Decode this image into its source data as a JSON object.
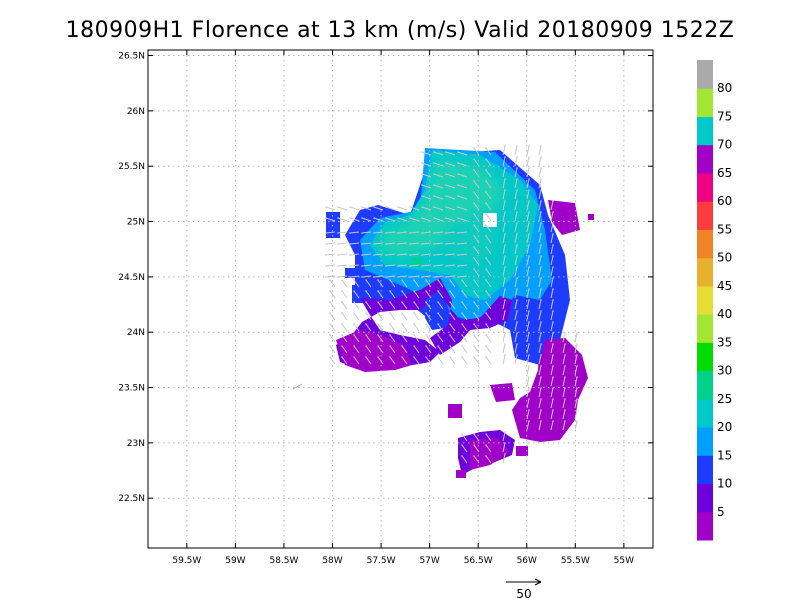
{
  "title": "180909H1 Florence at 13 km (m/s) Valid 20180909  1522Z",
  "map": {
    "lat_labels": [
      "26.5N",
      "26N",
      "25.5N",
      "25N",
      "24.5N",
      "24N",
      "23.5N",
      "23N",
      "22.5N"
    ],
    "lat_values": [
      26.5,
      26,
      25.5,
      25,
      24.5,
      24,
      23.5,
      23,
      22.5
    ],
    "lon_labels": [
      "59.5W",
      "59W",
      "58.5W",
      "58W",
      "57.5W",
      "57W",
      "56.5W",
      "56W",
      "55.5W",
      "55W"
    ],
    "lon_values": [
      -59.5,
      -59,
      -58.5,
      -58,
      -57.5,
      -57,
      -56.5,
      -56,
      -55.5,
      -55
    ],
    "lat_range": [
      22.05,
      26.55
    ],
    "lon_range": [
      -59.9,
      -54.7
    ],
    "grid": true
  },
  "colorbar": {
    "labels": [
      "5",
      "10",
      "15",
      "20",
      "25",
      "30",
      "35",
      "40",
      "45",
      "50",
      "55",
      "60",
      "65",
      "70",
      "75",
      "80"
    ],
    "colors": [
      "#a000c8",
      "#6e00dc",
      "#1e3cff",
      "#00a0ff",
      "#00c8c8",
      "#00d28c",
      "#00dc00",
      "#a0e632",
      "#e6dc32",
      "#e6af2d",
      "#f08228",
      "#fa3c3c",
      "#f00082",
      "#a000c8",
      "#00c8c8",
      "#a0e632",
      "#aaaaaa"
    ]
  },
  "reference_vector": {
    "label": "50"
  }
}
